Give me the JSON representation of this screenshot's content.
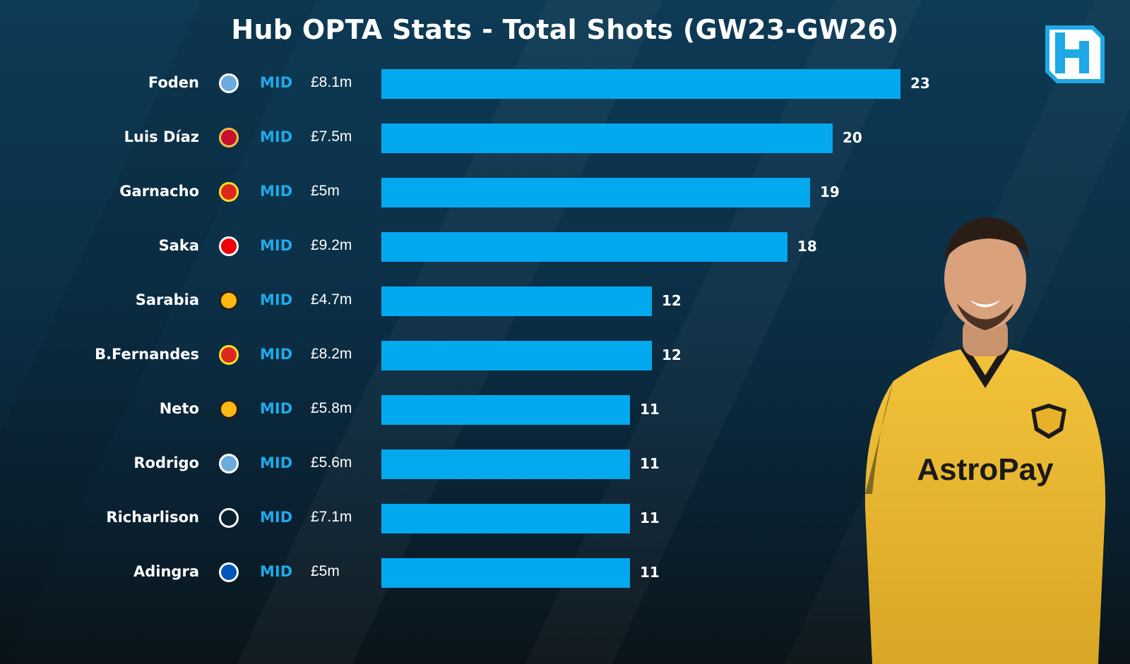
{
  "title": "Hub OPTA Stats - Total Shots (GW23-GW26)",
  "logo_text": "H",
  "colors": {
    "bar": "#03a9ef",
    "position": "#20a9e8",
    "background": "#0d3a55"
  },
  "sponsor_text": "AstroPay",
  "chart_data": {
    "type": "bar",
    "orientation": "horizontal",
    "title": "Hub OPTA Stats - Total Shots (GW23-GW26)",
    "xlim": [
      0,
      23
    ],
    "rows": [
      {
        "player": "Foden",
        "club_icon": "man-city-crest-icon",
        "position": "MID",
        "price": "£8.1m",
        "value": 23
      },
      {
        "player": "Luis Díaz",
        "club_icon": "liverpool-crest-icon",
        "position": "MID",
        "price": "£7.5m",
        "value": 20
      },
      {
        "player": "Garnacho",
        "club_icon": "man-utd-crest-icon",
        "position": "MID",
        "price": "£5m",
        "value": 19
      },
      {
        "player": "Saka",
        "club_icon": "arsenal-crest-icon",
        "position": "MID",
        "price": "£9.2m",
        "value": 18
      },
      {
        "player": "Sarabia",
        "club_icon": "wolves-crest-icon",
        "position": "MID",
        "price": "£4.7m",
        "value": 12
      },
      {
        "player": "B.Fernandes",
        "club_icon": "man-utd-crest-icon",
        "position": "MID",
        "price": "£8.2m",
        "value": 12
      },
      {
        "player": "Neto",
        "club_icon": "wolves-crest-icon",
        "position": "MID",
        "price": "£5.8m",
        "value": 11
      },
      {
        "player": "Rodrigo",
        "club_icon": "man-city-crest-icon",
        "position": "MID",
        "price": "£5.6m",
        "value": 11
      },
      {
        "player": "Richarlison",
        "club_icon": "tottenham-crest-icon",
        "position": "MID",
        "price": "£7.1m",
        "value": 11
      },
      {
        "player": "Adingra",
        "club_icon": "brighton-crest-icon",
        "position": "MID",
        "price": "£5m",
        "value": 11
      }
    ]
  }
}
